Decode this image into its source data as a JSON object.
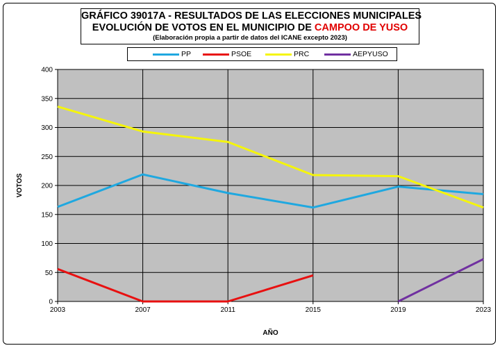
{
  "title": {
    "line1": "GRÁFICO 39017A - RESULTADOS DE LAS ELECCIONES MUNICIPALES",
    "line2_prefix": "EVOLUCIÓN DE VOTOS EN EL MUNICIPIO DE ",
    "line2_highlight": "CAMPOO DE YUSO",
    "line3": "(Elaboración propia a partir de datos del ICANE excepto 2023)"
  },
  "colors": {
    "plot_background": "#c0c0c0",
    "highlight": "#e00000"
  },
  "chart_data": {
    "type": "line",
    "title": "GRÁFICO 39017A - RESULTADOS DE LAS ELECCIONES MUNICIPALES",
    "xlabel": "AÑO",
    "ylabel": "VOTOS",
    "x": [
      "2003",
      "2007",
      "2011",
      "2015",
      "2019",
      "2023"
    ],
    "ylim": [
      0,
      400
    ],
    "yticks": [
      "0",
      "50",
      "100",
      "150",
      "200",
      "250",
      "300",
      "350",
      "400"
    ],
    "grid": true,
    "legend_position": "top",
    "series": [
      {
        "name": "PP",
        "color": "#1fa8e0",
        "values": [
          163,
          219,
          187,
          162,
          198,
          185
        ]
      },
      {
        "name": "PSOE",
        "color": "#e81010",
        "values": [
          56,
          0,
          0,
          45,
          null,
          null
        ]
      },
      {
        "name": "PRC",
        "color": "#f5f50a",
        "values": [
          336,
          293,
          275,
          218,
          216,
          162
        ]
      },
      {
        "name": "AEPYUSO",
        "color": "#7030a0",
        "values": [
          null,
          null,
          null,
          null,
          0,
          73
        ]
      }
    ]
  }
}
